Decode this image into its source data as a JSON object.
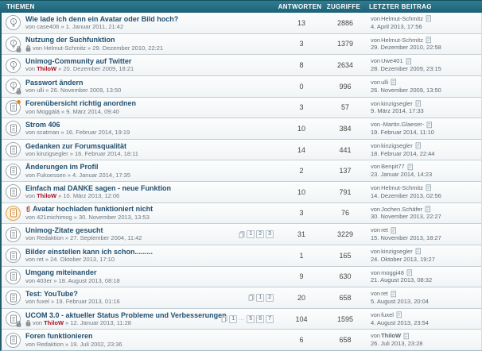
{
  "header": {
    "themen": "THEMEN",
    "antworten": "ANTWORTEN",
    "zugriffe": "ZUGRIFFE",
    "letzter_beitrag": "LETZTER BEITRAG"
  },
  "byline_prefix": "von",
  "colors": {
    "header_teal_top": "#2f7d92",
    "header_teal_bottom": "#1e6175",
    "title_blue": "#23506f",
    "admin_red": "#ab1022",
    "highlight_orange": "#e8891c"
  },
  "topics": [
    {
      "icon": "bulb",
      "icon_locked": false,
      "icon_new_dot": false,
      "icon_highlight": false,
      "attachment": false,
      "byline_lock": false,
      "title": "Wie lade ich denn ein Avatar oder Bild hoch?",
      "author": "case406",
      "author_red": false,
      "date": "1. Januar 2011, 21:42",
      "pagination": [],
      "replies": "13",
      "views": "2886",
      "last": {
        "author": "Helmut-Schmitz",
        "author_red": false,
        "date": "4. April 2013, 17:56"
      }
    },
    {
      "icon": "bulb",
      "icon_locked": true,
      "icon_new_dot": false,
      "icon_highlight": false,
      "attachment": false,
      "byline_lock": true,
      "title": "Nutzung der Suchfunktion",
      "author": "Helmut-Schmitz",
      "author_red": false,
      "date": "29. Dezember 2010, 22:21",
      "pagination": [],
      "replies": "3",
      "views": "1379",
      "last": {
        "author": "Helmut-Schmitz",
        "author_red": false,
        "date": "29. Dezember 2010, 22:58"
      }
    },
    {
      "icon": "bulb",
      "icon_locked": false,
      "icon_new_dot": false,
      "icon_highlight": false,
      "attachment": false,
      "byline_lock": false,
      "title": "Unimog-Community auf Twitter",
      "author": "ThiloW",
      "author_red": true,
      "date": "20. Dezember 2009, 18:21",
      "pagination": [],
      "replies": "8",
      "views": "2634",
      "last": {
        "author": "Uwe401",
        "author_red": false,
        "date": "28. Dezember 2009, 23:15"
      }
    },
    {
      "icon": "bulb",
      "icon_locked": true,
      "icon_new_dot": false,
      "icon_highlight": false,
      "attachment": false,
      "byline_lock": false,
      "title": "Passwort ändern",
      "author": "ulli",
      "author_red": false,
      "date": "26. November 2009, 13:50",
      "pagination": [],
      "replies": "0",
      "views": "996",
      "last": {
        "author": "ulli",
        "author_red": false,
        "date": "26. November 2009, 13:50"
      }
    },
    {
      "icon": "paper",
      "icon_locked": false,
      "icon_new_dot": true,
      "icon_highlight": false,
      "attachment": false,
      "byline_lock": false,
      "title": "Forenübersicht richtig anordnen",
      "author": "Moggälä",
      "author_red": false,
      "date": "9. März 2014, 09:40",
      "pagination": [],
      "replies": "3",
      "views": "57",
      "last": {
        "author": "kinzigsegler",
        "author_red": false,
        "date": "9. März 2014, 17:33"
      }
    },
    {
      "icon": "paper",
      "icon_locked": false,
      "icon_new_dot": false,
      "icon_highlight": false,
      "attachment": false,
      "byline_lock": false,
      "title": "Strom 406",
      "author": "scatman",
      "author_red": false,
      "date": "16. Februar 2014, 19:19",
      "pagination": [],
      "replies": "10",
      "views": "384",
      "last": {
        "author": "-Martin.Glaeser-",
        "author_red": false,
        "date": "19. Februar 2014, 11:10"
      }
    },
    {
      "icon": "paper",
      "icon_locked": false,
      "icon_new_dot": false,
      "icon_highlight": false,
      "attachment": false,
      "byline_lock": false,
      "title": "Gedanken zur Forumsqualität",
      "author": "kinzigsegler",
      "author_red": false,
      "date": "16. Februar 2014, 18:11",
      "pagination": [],
      "replies": "14",
      "views": "441",
      "last": {
        "author": "kinzigsegler",
        "author_red": false,
        "date": "18. Februar 2014, 22:44"
      }
    },
    {
      "icon": "paper",
      "icon_locked": false,
      "icon_new_dot": false,
      "icon_highlight": false,
      "attachment": false,
      "byline_lock": false,
      "title": "Änderungen im Profil",
      "author": "Fukoessen",
      "author_red": false,
      "date": "4. Januar 2014, 17:35",
      "pagination": [],
      "replies": "2",
      "views": "137",
      "last": {
        "author": "Benpit77",
        "author_red": false,
        "date": "23. Januar 2014, 14:23"
      }
    },
    {
      "icon": "paper",
      "icon_locked": false,
      "icon_new_dot": false,
      "icon_highlight": false,
      "attachment": false,
      "byline_lock": false,
      "title": "Einfach mal DANKE sagen - neue Funktion",
      "author": "ThiloW",
      "author_red": true,
      "date": "10. März 2013, 12:06",
      "pagination": [],
      "replies": "10",
      "views": "791",
      "last": {
        "author": "Helmut-Schmitz",
        "author_red": false,
        "date": "14. Dezember 2013, 02:56"
      }
    },
    {
      "icon": "paper",
      "icon_locked": false,
      "icon_new_dot": false,
      "icon_highlight": true,
      "attachment": true,
      "byline_lock": false,
      "title": "Avatar hochladen funktioniert nicht",
      "author": "421michimog",
      "author_red": false,
      "date": "30. November 2013, 13:53",
      "pagination": [],
      "replies": "3",
      "views": "76",
      "last": {
        "author": "Jochen.Schäfer",
        "author_red": false,
        "date": "30. November 2013, 22:27"
      }
    },
    {
      "icon": "paper",
      "icon_locked": false,
      "icon_new_dot": false,
      "icon_highlight": false,
      "attachment": false,
      "byline_lock": false,
      "title": "Unimog-Zitate gesucht",
      "author": "Redaktion",
      "author_red": false,
      "date": "27. September 2004, 11:42",
      "pagination": [
        "1",
        "2",
        "3"
      ],
      "replies": "31",
      "views": "3229",
      "last": {
        "author": "ret",
        "author_red": false,
        "date": "15. November 2013, 18:27"
      }
    },
    {
      "icon": "paper",
      "icon_locked": false,
      "icon_new_dot": false,
      "icon_highlight": false,
      "attachment": false,
      "byline_lock": false,
      "title": "Bilder einstellen kann ich schon.........",
      "author": "ret",
      "author_red": false,
      "date": "24. Oktober 2013, 17:10",
      "pagination": [],
      "replies": "1",
      "views": "165",
      "last": {
        "author": "kinzigsegler",
        "author_red": false,
        "date": "24. Oktober 2013, 19:27"
      }
    },
    {
      "icon": "paper",
      "icon_locked": false,
      "icon_new_dot": false,
      "icon_highlight": false,
      "attachment": false,
      "byline_lock": false,
      "title": "Umgang miteinander",
      "author": "403er",
      "author_red": false,
      "date": "18. August 2013, 08:18",
      "pagination": [],
      "replies": "9",
      "views": "630",
      "last": {
        "author": "moggi48",
        "author_red": false,
        "date": "21. August 2013, 08:32"
      }
    },
    {
      "icon": "paper",
      "icon_locked": false,
      "icon_new_dot": false,
      "icon_highlight": false,
      "attachment": false,
      "byline_lock": false,
      "title": "Test: YouTube?",
      "author": "fuxel",
      "author_red": false,
      "date": "19. Februar 2013, 01:16",
      "pagination": [
        "1",
        "2"
      ],
      "replies": "20",
      "views": "658",
      "last": {
        "author": "ret",
        "author_red": false,
        "date": "5. August 2013, 20:04"
      }
    },
    {
      "icon": "paper",
      "icon_locked": true,
      "icon_new_dot": false,
      "icon_highlight": false,
      "attachment": false,
      "byline_lock": true,
      "title": "UCOM 3.0 - aktueller Status Probleme und Verbesserungen",
      "author": "ThiloW",
      "author_red": true,
      "date": "12. Januar 2013, 11:28",
      "pagination": [
        "1",
        "…",
        "5",
        "6",
        "7"
      ],
      "replies": "104",
      "views": "1595",
      "last": {
        "author": "fuxel",
        "author_red": false,
        "date": "4. August 2013, 23:54"
      }
    },
    {
      "icon": "paper",
      "icon_locked": false,
      "icon_new_dot": false,
      "icon_highlight": false,
      "attachment": false,
      "byline_lock": false,
      "title": "Foren funktionieren",
      "author": "Redaktion",
      "author_red": false,
      "date": "19. Juli 2002, 23:36",
      "pagination": [],
      "replies": "6",
      "views": "658",
      "last": {
        "author": "ThiloW",
        "author_red": true,
        "date": "26. Juli 2013, 23:28"
      }
    }
  ]
}
